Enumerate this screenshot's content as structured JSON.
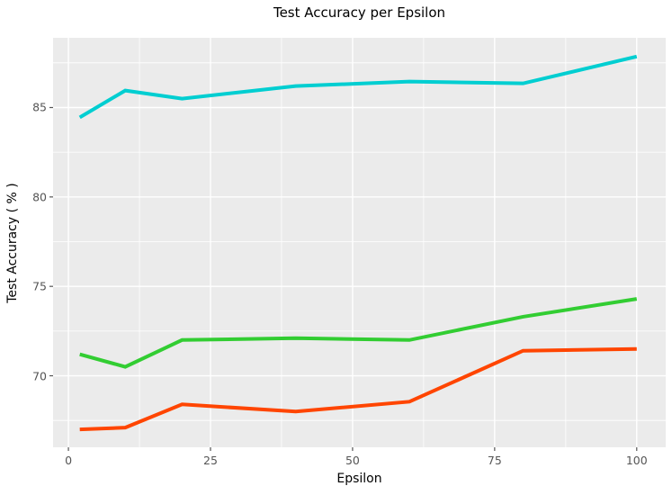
{
  "title": "Test Accuracy per Epsilon",
  "chart_data": {
    "type": "line",
    "title": "Test Accuracy per Epsilon",
    "xlabel": "Epsilon",
    "ylabel": "Test Accuracy ( % )",
    "x": [
      2,
      10,
      20,
      40,
      60,
      80,
      100
    ],
    "series": [
      {
        "name": "series-cyan",
        "color": "#00CED1",
        "values": [
          84.45,
          85.95,
          85.5,
          86.2,
          86.45,
          86.35,
          87.85
        ]
      },
      {
        "name": "series-green",
        "color": "#32CD32",
        "values": [
          71.2,
          70.5,
          72.0,
          72.1,
          72.0,
          73.3,
          74.3
        ]
      },
      {
        "name": "series-orange",
        "color": "#FF4500",
        "values": [
          67.0,
          67.1,
          68.4,
          68.0,
          68.55,
          71.4,
          71.5
        ]
      }
    ],
    "xlim": [
      -2.7,
      105.1
    ],
    "ylim": [
      66.0,
      88.9
    ],
    "xticks": [
      0,
      25,
      50,
      75,
      100
    ],
    "yticks": [
      70,
      75,
      80,
      85
    ],
    "xticks_minor": [
      12.5,
      37.5,
      62.5,
      87.5
    ],
    "yticks_minor": [
      67.5,
      72.5,
      77.5,
      82.5,
      87.5
    ],
    "grid": true,
    "legend": false,
    "style": {
      "plot_bg": "#EBEBEB",
      "grid_major_color": "#FFFFFF",
      "grid_minor_color": "#FFFFFF",
      "tick_label_color": "#555555",
      "tick_mark_color": "#555555",
      "text_color": "#000000",
      "line_width": 4
    }
  }
}
